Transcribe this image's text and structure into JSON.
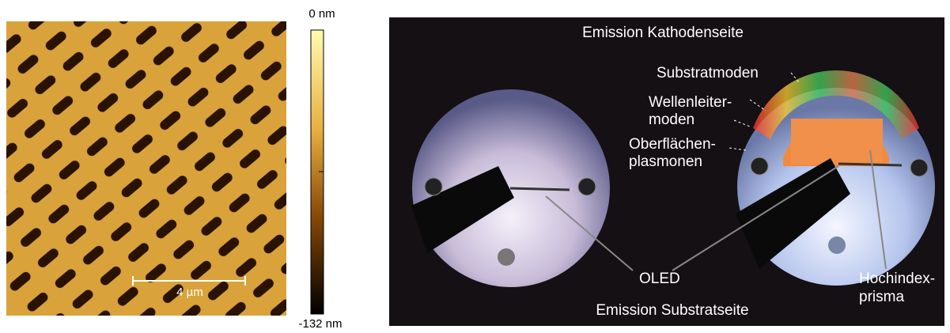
{
  "afm_image": {
    "scale_bar": "4 µm",
    "colorbar": {
      "top_label": "0 nm",
      "bottom_label": "-132 nm"
    }
  },
  "photo": {
    "labels": {
      "top": "Emission Kathodenseite",
      "substrate_modes": "Substratmoden",
      "waveguide_modes": [
        "Wellenleiter-",
        "moden"
      ],
      "surface_plasmons": [
        "Oberflächen-",
        "plasmonen"
      ],
      "oled": "OLED",
      "bottom": "Emission Substratseite",
      "prism": [
        "Hochindex-",
        "prisma"
      ]
    }
  }
}
